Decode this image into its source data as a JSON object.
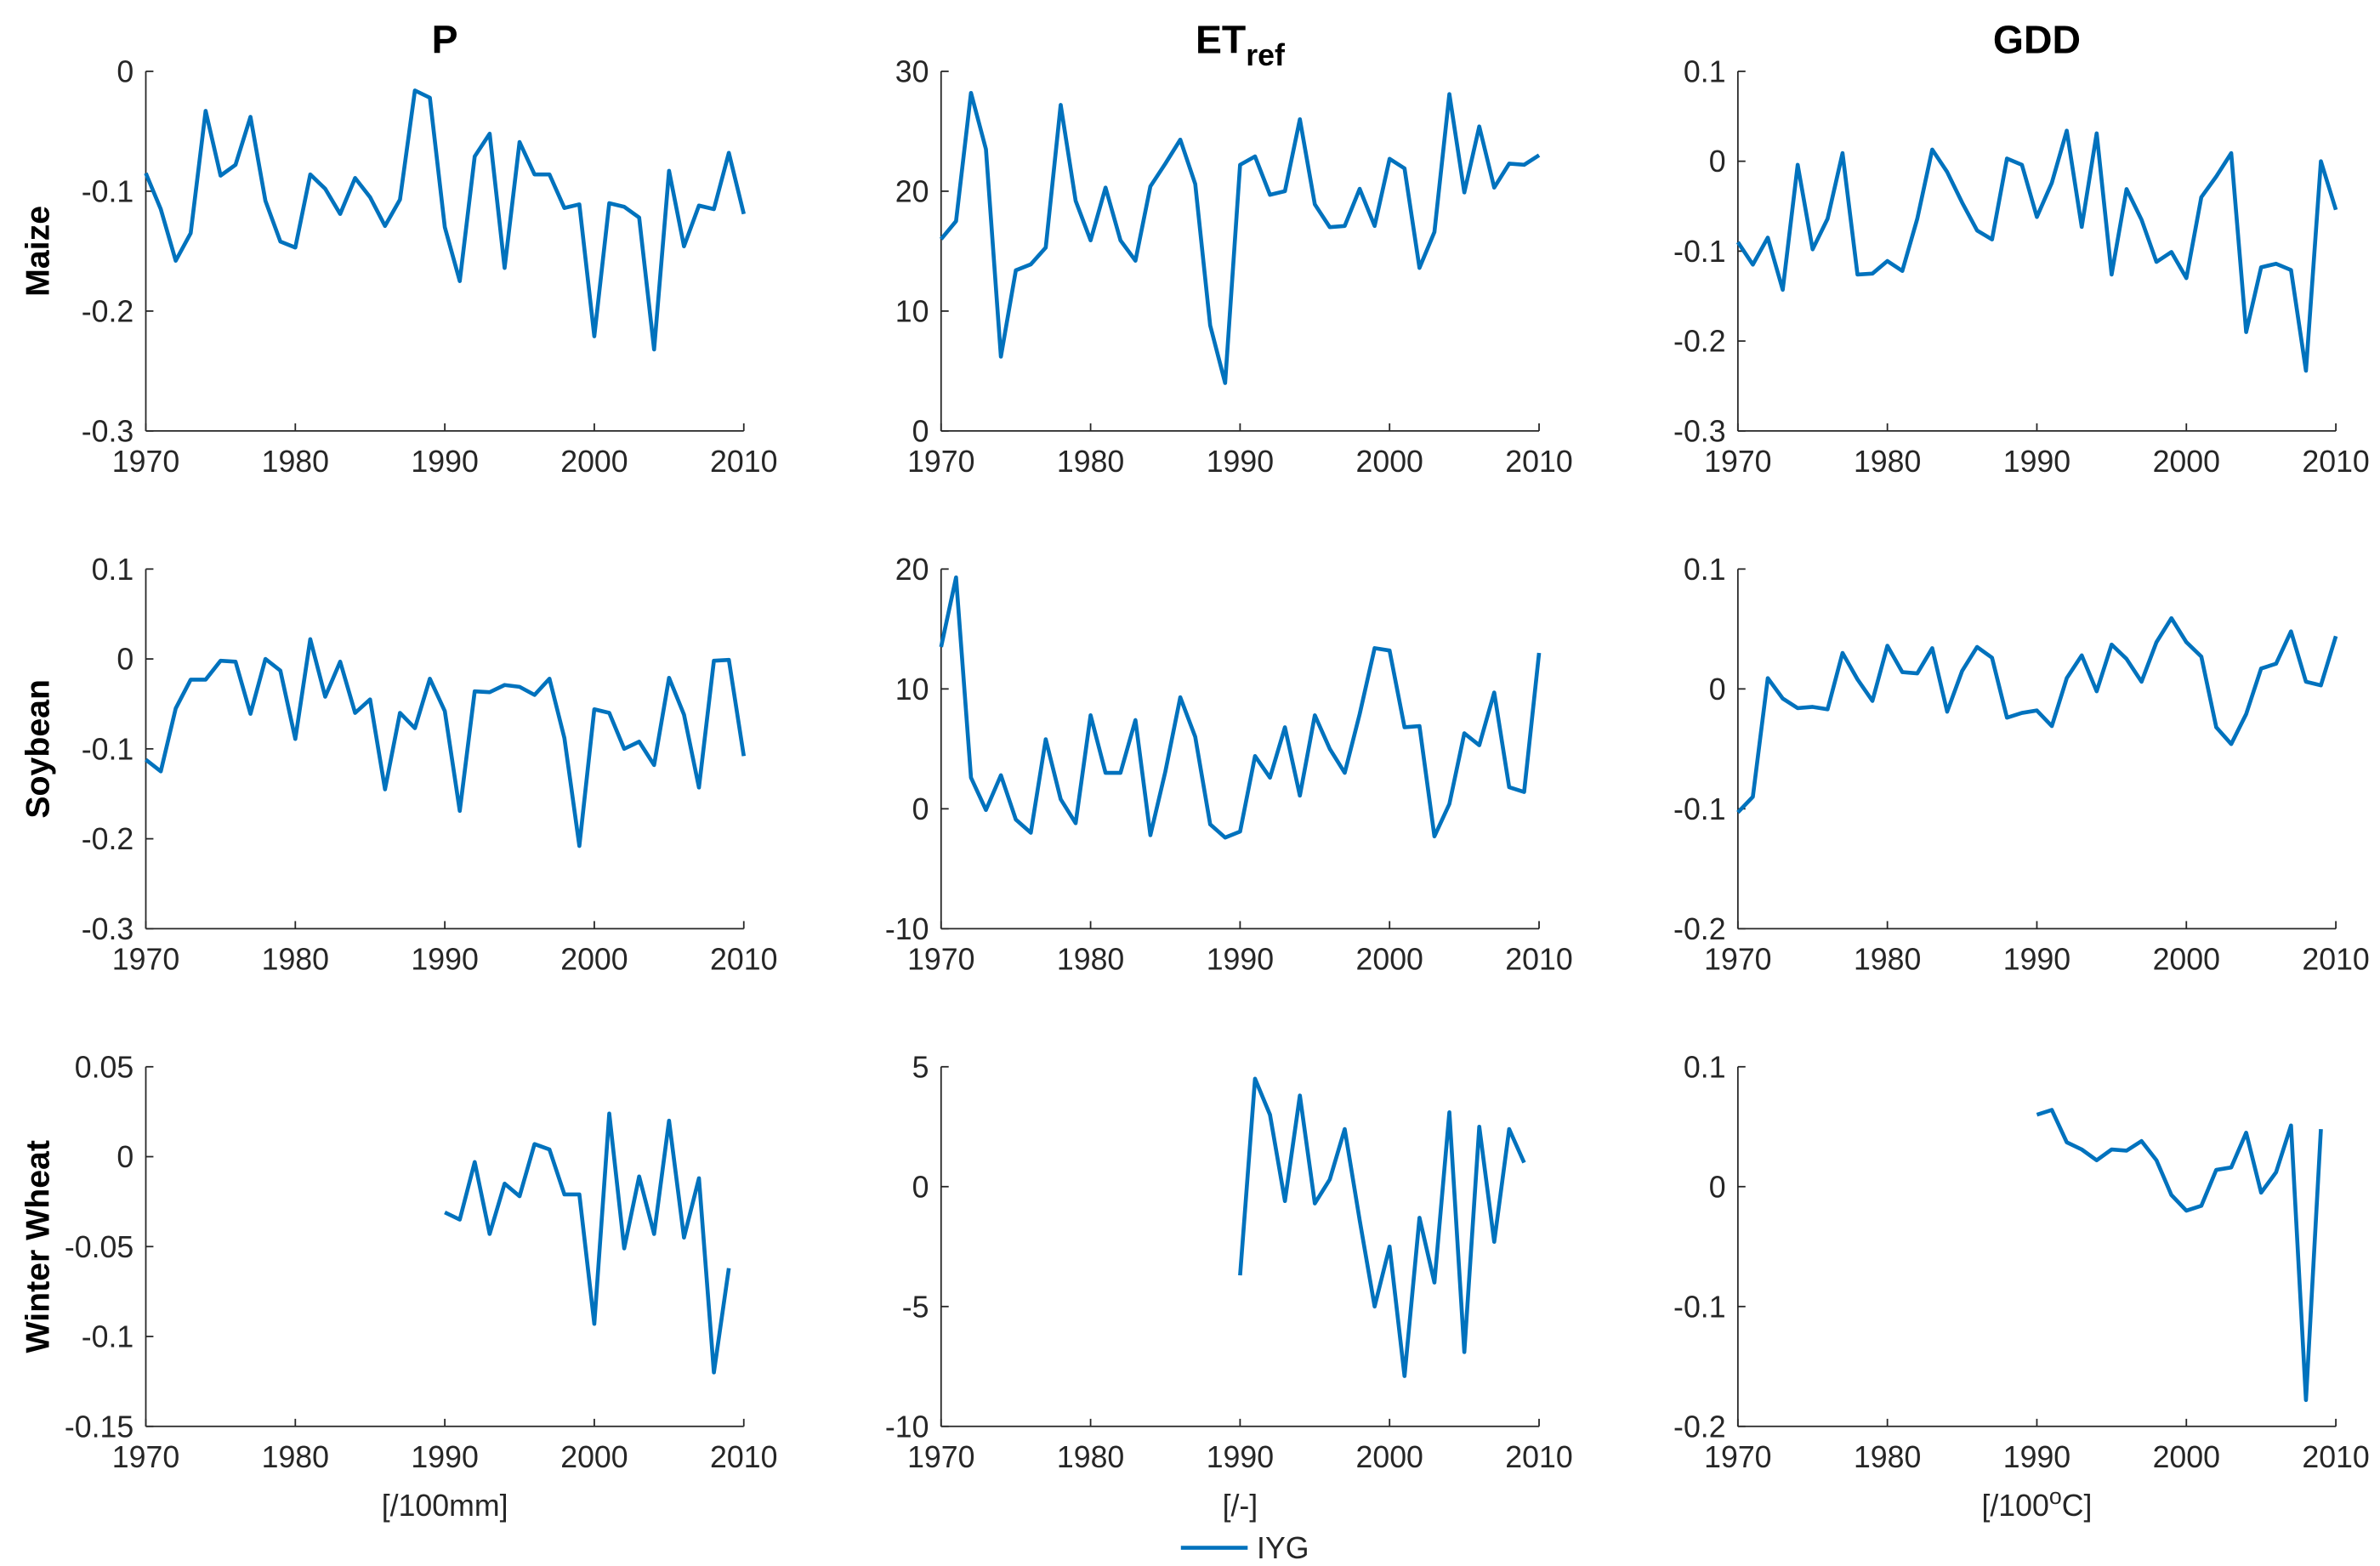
{
  "chart_data": [
    {
      "type": "line",
      "title": "P",
      "ylabel": "Maize",
      "x": [
        1970,
        1971,
        1972,
        1973,
        1974,
        1975,
        1976,
        1977,
        1978,
        1979,
        1980,
        1981,
        1982,
        1983,
        1984,
        1985,
        1986,
        1987,
        1988,
        1989,
        1990,
        1991,
        1992,
        1993,
        1994,
        1995,
        1996,
        1997,
        1998,
        1999,
        2000,
        2001,
        2002,
        2003,
        2004,
        2005,
        2006,
        2007,
        2008,
        2009,
        2010
      ],
      "values": [
        -0.085,
        -0.115,
        -0.158,
        -0.135,
        -0.033,
        -0.087,
        -0.078,
        -0.038,
        -0.108,
        -0.142,
        -0.147,
        -0.086,
        -0.098,
        -0.119,
        -0.089,
        -0.105,
        -0.129,
        -0.107,
        -0.016,
        -0.022,
        -0.13,
        -0.175,
        -0.071,
        -0.052,
        -0.164,
        -0.059,
        -0.086,
        -0.086,
        -0.114,
        -0.111,
        -0.221,
        -0.11,
        -0.113,
        -0.122,
        -0.232,
        -0.083,
        -0.146,
        -0.112,
        -0.115,
        -0.068,
        -0.119
      ],
      "xlim": [
        1970,
        2010
      ],
      "xticks": [
        1970,
        1980,
        1990,
        2000,
        2010
      ],
      "ylim": [
        -0.3,
        0
      ],
      "yticks": [
        -0.3,
        -0.2,
        -0.1,
        0
      ]
    },
    {
      "type": "line",
      "title": "ET",
      "title_sub": "ref",
      "x": [
        1970,
        1971,
        1972,
        1973,
        1974,
        1975,
        1976,
        1977,
        1978,
        1979,
        1980,
        1981,
        1982,
        1983,
        1984,
        1985,
        1986,
        1987,
        1988,
        1989,
        1990,
        1991,
        1992,
        1993,
        1994,
        1995,
        1996,
        1997,
        1998,
        1999,
        2000,
        2001,
        2002,
        2003,
        2004,
        2005,
        2006,
        2007,
        2008,
        2009,
        2010
      ],
      "values": [
        16,
        17.5,
        28.2,
        23.5,
        6.2,
        13.4,
        13.9,
        15.3,
        27.2,
        19.2,
        15.9,
        20.3,
        15.9,
        14.2,
        20.4,
        22.3,
        24.3,
        20.6,
        8.8,
        4,
        22.2,
        22.9,
        19.7,
        20,
        26,
        18.9,
        17,
        17.1,
        20.2,
        17.1,
        22.7,
        21.9,
        13.6,
        16.6,
        28.1,
        19.9,
        25.4,
        20.3,
        22.3,
        22.2,
        23
      ],
      "xlim": [
        1970,
        2010
      ],
      "xticks": [
        1970,
        1980,
        1990,
        2000,
        2010
      ],
      "ylim": [
        0,
        30
      ],
      "yticks": [
        0,
        10,
        20,
        30
      ]
    },
    {
      "type": "line",
      "title": "GDD",
      "x": [
        1970,
        1971,
        1972,
        1973,
        1974,
        1975,
        1976,
        1977,
        1978,
        1979,
        1980,
        1981,
        1982,
        1983,
        1984,
        1985,
        1986,
        1987,
        1988,
        1989,
        1990,
        1991,
        1992,
        1993,
        1994,
        1995,
        1996,
        1997,
        1998,
        1999,
        2000,
        2001,
        2002,
        2003,
        2004,
        2005,
        2006,
        2007,
        2008,
        2009,
        2010
      ],
      "values": [
        -0.09,
        -0.115,
        -0.085,
        -0.143,
        -0.004,
        -0.098,
        -0.064,
        0.009,
        -0.126,
        -0.125,
        -0.111,
        -0.122,
        -0.064,
        0.013,
        -0.012,
        -0.046,
        -0.077,
        -0.087,
        0.003,
        -0.004,
        -0.062,
        -0.024,
        0.034,
        -0.073,
        0.031,
        -0.126,
        -0.031,
        -0.065,
        -0.112,
        -0.101,
        -0.13,
        -0.04,
        -0.017,
        0.009,
        -0.19,
        -0.118,
        -0.114,
        -0.121,
        -0.233,
        0,
        -0.054
      ],
      "xlim": [
        1970,
        2010
      ],
      "xticks": [
        1970,
        1980,
        1990,
        2000,
        2010
      ],
      "ylim": [
        -0.3,
        0.1
      ],
      "yticks": [
        -0.3,
        -0.2,
        -0.1,
        0,
        0.1
      ]
    },
    {
      "type": "line",
      "ylabel": "Soybean",
      "x": [
        1970,
        1971,
        1972,
        1973,
        1974,
        1975,
        1976,
        1977,
        1978,
        1979,
        1980,
        1981,
        1982,
        1983,
        1984,
        1985,
        1986,
        1987,
        1988,
        1989,
        1990,
        1991,
        1992,
        1993,
        1994,
        1995,
        1996,
        1997,
        1998,
        1999,
        2000,
        2001,
        2002,
        2003,
        2004,
        2005,
        2006,
        2007,
        2008,
        2009,
        2010
      ],
      "values": [
        -0.112,
        -0.125,
        -0.055,
        -0.023,
        -0.023,
        -0.002,
        -0.003,
        -0.061,
        0,
        -0.013,
        -0.089,
        0.022,
        -0.042,
        -0.003,
        -0.06,
        -0.045,
        -0.145,
        -0.06,
        -0.077,
        -0.022,
        -0.058,
        -0.169,
        -0.036,
        -0.037,
        -0.029,
        -0.031,
        -0.04,
        -0.022,
        -0.088,
        -0.208,
        -0.056,
        -0.06,
        -0.1,
        -0.092,
        -0.118,
        -0.021,
        -0.062,
        -0.143,
        -0.002,
        -0.001,
        -0.108
      ],
      "xlim": [
        1970,
        2010
      ],
      "xticks": [
        1970,
        1980,
        1990,
        2000,
        2010
      ],
      "ylim": [
        -0.3,
        0.1
      ],
      "yticks": [
        -0.3,
        -0.2,
        -0.1,
        0,
        0.1
      ]
    },
    {
      "type": "line",
      "x": [
        1970,
        1971,
        1972,
        1973,
        1974,
        1975,
        1976,
        1977,
        1978,
        1979,
        1980,
        1981,
        1982,
        1983,
        1984,
        1985,
        1986,
        1987,
        1988,
        1989,
        1990,
        1991,
        1992,
        1993,
        1994,
        1995,
        1996,
        1997,
        1998,
        1999,
        2000,
        2001,
        2002,
        2003,
        2004,
        2005,
        2006,
        2007,
        2008,
        2009,
        2010
      ],
      "values": [
        13.5,
        19.3,
        2.6,
        -0.1,
        2.8,
        -0.9,
        -2,
        5.8,
        0.8,
        -1.2,
        7.8,
        3,
        3,
        7.4,
        -2.2,
        3.1,
        9.3,
        6,
        -1.3,
        -2.4,
        -1.9,
        4.4,
        2.6,
        6.8,
        1.1,
        7.8,
        5,
        3,
        7.9,
        13.4,
        13.2,
        6.8,
        6.9,
        -2.3,
        0.4,
        6.3,
        5.3,
        9.7,
        1.8,
        1.4,
        13
      ],
      "xlim": [
        1970,
        2010
      ],
      "xticks": [
        1970,
        1980,
        1990,
        2000,
        2010
      ],
      "ylim": [
        -10,
        20
      ],
      "yticks": [
        -10,
        0,
        10,
        20
      ]
    },
    {
      "type": "line",
      "x": [
        1970,
        1971,
        1972,
        1973,
        1974,
        1975,
        1976,
        1977,
        1978,
        1979,
        1980,
        1981,
        1982,
        1983,
        1984,
        1985,
        1986,
        1987,
        1988,
        1989,
        1990,
        1991,
        1992,
        1993,
        1994,
        1995,
        1996,
        1997,
        1998,
        1999,
        2000,
        2001,
        2002,
        2003,
        2004,
        2005,
        2006,
        2007,
        2008,
        2009,
        2010
      ],
      "values": [
        -0.103,
        -0.09,
        0.009,
        -0.008,
        -0.016,
        -0.015,
        -0.017,
        0.03,
        0.008,
        -0.01,
        0.036,
        0.014,
        0.013,
        0.034,
        -0.019,
        0.015,
        0.035,
        0.026,
        -0.024,
        -0.02,
        -0.018,
        -0.031,
        0.009,
        0.028,
        -0.002,
        0.037,
        0.025,
        0.006,
        0.039,
        0.059,
        0.039,
        0.027,
        -0.032,
        -0.046,
        -0.021,
        0.017,
        0.021,
        0.048,
        0.006,
        0.003,
        0.044
      ],
      "xlim": [
        1970,
        2010
      ],
      "xticks": [
        1970,
        1980,
        1990,
        2000,
        2010
      ],
      "ylim": [
        -0.2,
        0.1
      ],
      "yticks": [
        -0.2,
        -0.1,
        0,
        0.1
      ]
    },
    {
      "type": "line",
      "ylabel": "Winter Wheat",
      "xlabel": "[/100mm]",
      "x": [
        1970,
        1971,
        1972,
        1973,
        1974,
        1975,
        1976,
        1977,
        1978,
        1979,
        1980,
        1981,
        1982,
        1983,
        1984,
        1985,
        1986,
        1987,
        1988,
        1989,
        1990,
        1991,
        1992,
        1993,
        1994,
        1995,
        1996,
        1997,
        1998,
        1999,
        2000,
        2001,
        2002,
        2003,
        2004,
        2005,
        2006,
        2007,
        2008,
        2009,
        2010
      ],
      "values": [
        null,
        null,
        null,
        null,
        null,
        null,
        null,
        null,
        null,
        null,
        null,
        null,
        null,
        null,
        null,
        null,
        null,
        null,
        null,
        null,
        -0.031,
        -0.035,
        -0.003,
        -0.043,
        -0.015,
        -0.022,
        0.007,
        0.004,
        -0.021,
        -0.021,
        -0.093,
        0.024,
        -0.051,
        -0.011,
        -0.043,
        0.02,
        -0.045,
        -0.012,
        -0.12,
        -0.062,
        null
      ],
      "xlim": [
        1970,
        2010
      ],
      "xticks": [
        1970,
        1980,
        1990,
        2000,
        2010
      ],
      "ylim": [
        -0.15,
        0.05
      ],
      "yticks": [
        -0.15,
        -0.1,
        -0.05,
        0,
        0.05
      ]
    },
    {
      "type": "line",
      "xlabel": "[/-]",
      "x": [
        1970,
        1971,
        1972,
        1973,
        1974,
        1975,
        1976,
        1977,
        1978,
        1979,
        1980,
        1981,
        1982,
        1983,
        1984,
        1985,
        1986,
        1987,
        1988,
        1989,
        1990,
        1991,
        1992,
        1993,
        1994,
        1995,
        1996,
        1997,
        1998,
        1999,
        2000,
        2001,
        2002,
        2003,
        2004,
        2005,
        2006,
        2007,
        2008,
        2009,
        2010
      ],
      "values": [
        null,
        null,
        null,
        null,
        null,
        null,
        null,
        null,
        null,
        null,
        null,
        null,
        null,
        null,
        null,
        null,
        null,
        null,
        null,
        null,
        -3.7,
        4.5,
        3,
        -0.6,
        3.8,
        -0.7,
        0.3,
        2.4,
        -1.4,
        -5,
        -2.5,
        -7.9,
        -1.3,
        -4,
        3.1,
        -6.9,
        2.5,
        -2.3,
        2.4,
        1,
        null
      ],
      "xlim": [
        1970,
        2010
      ],
      "xticks": [
        1970,
        1980,
        1990,
        2000,
        2010
      ],
      "ylim": [
        -10,
        5
      ],
      "yticks": [
        -10,
        -5,
        0,
        5
      ]
    },
    {
      "type": "line",
      "xlabel": "[/100",
      "xlabel_sup": "o",
      "xlabel_end": "C]",
      "x": [
        1970,
        1971,
        1972,
        1973,
        1974,
        1975,
        1976,
        1977,
        1978,
        1979,
        1980,
        1981,
        1982,
        1983,
        1984,
        1985,
        1986,
        1987,
        1988,
        1989,
        1990,
        1991,
        1992,
        1993,
        1994,
        1995,
        1996,
        1997,
        1998,
        1999,
        2000,
        2001,
        2002,
        2003,
        2004,
        2005,
        2006,
        2007,
        2008,
        2009,
        2010
      ],
      "values": [
        null,
        null,
        null,
        null,
        null,
        null,
        null,
        null,
        null,
        null,
        null,
        null,
        null,
        null,
        null,
        null,
        null,
        null,
        null,
        null,
        0.06,
        0.064,
        0.037,
        0.031,
        0.022,
        0.031,
        0.03,
        0.038,
        0.022,
        -0.007,
        -0.02,
        -0.016,
        0.014,
        0.016,
        0.045,
        -0.005,
        0.012,
        0.051,
        -0.178,
        0.048,
        null
      ],
      "xlim": [
        1970,
        2010
      ],
      "xticks": [
        1970,
        1980,
        1990,
        2000,
        2010
      ],
      "ylim": [
        -0.2,
        0.1
      ],
      "yticks": [
        -0.2,
        -0.1,
        0,
        0.1
      ]
    }
  ],
  "legend": {
    "name": "IYG",
    "color": "#0072BD",
    "position": "bottom"
  }
}
